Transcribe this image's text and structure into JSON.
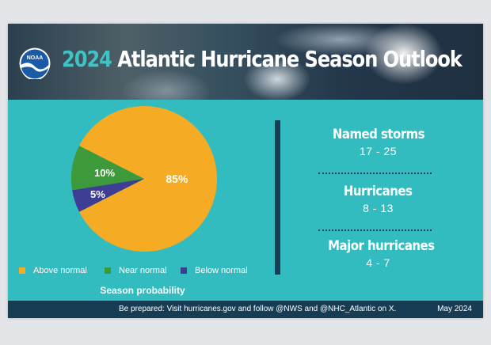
{
  "title": {
    "year": "2024",
    "rest": "Atlantic Hurricane Season Outlook"
  },
  "logo": {
    "text": "NOAA",
    "icon": "noaa-logo"
  },
  "chart_data": {
    "type": "pie",
    "caption": "Season probability",
    "slices": [
      {
        "name": "Above normal",
        "value": 85,
        "label": "85%",
        "color": "#f5ab23"
      },
      {
        "name": "Near normal",
        "value": 10,
        "label": "10%",
        "color": "#3c9a3b"
      },
      {
        "name": "Below normal",
        "value": 5,
        "label": "5%",
        "color": "#3d3e91"
      }
    ],
    "legend_position": "bottom"
  },
  "stats": [
    {
      "label": "Named storms",
      "value": "17 - 25"
    },
    {
      "label": "Hurricanes",
      "value": "8 - 13"
    },
    {
      "label": "Major hurricanes",
      "value": "4 - 7"
    }
  ],
  "footer": {
    "text": "Be prepared: Visit hurricanes.gov and follow @NWS and @NHC_Atlantic on X.",
    "date": "May 2024"
  },
  "colors": {
    "background": "#32bcc0",
    "accent_dark": "#173d55",
    "title_year": "#3cc4c7"
  }
}
